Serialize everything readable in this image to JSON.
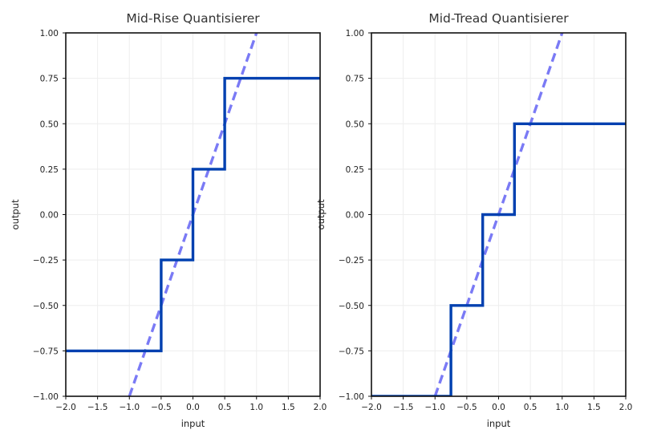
{
  "colors": {
    "quantized": "#0040b0",
    "ideal": "#7a7af5",
    "grid": "#eeeeee"
  },
  "chart_data": [
    {
      "type": "line",
      "title": "Mid-Rise Quantisierer",
      "xlabel": "input",
      "ylabel": "output",
      "xlim": [
        -2.0,
        2.0
      ],
      "ylim": [
        -1.0,
        1.0
      ],
      "xticks": [
        "−2.0",
        "−1.5",
        "−1.0",
        "−0.5",
        "0.0",
        "0.5",
        "1.0",
        "1.5",
        "2.0"
      ],
      "yticks": [
        "−1.00",
        "−0.75",
        "−0.50",
        "−0.25",
        "0.00",
        "0.25",
        "0.50",
        "0.75",
        "1.00"
      ],
      "grid": true,
      "series": [
        {
          "style": "solid-step",
          "x": [
            -2.0,
            -0.5,
            -0.5,
            0.0,
            0.0,
            0.5,
            0.5,
            2.0
          ],
          "y": [
            -0.75,
            -0.75,
            -0.25,
            -0.25,
            0.25,
            0.25,
            0.75,
            0.75
          ]
        },
        {
          "style": "dashed",
          "x": [
            -1.0,
            1.0
          ],
          "y": [
            -1.0,
            1.0
          ]
        }
      ]
    },
    {
      "type": "line",
      "title": "Mid-Tread Quantisierer",
      "xlabel": "input",
      "ylabel": "output",
      "xlim": [
        -2.0,
        2.0
      ],
      "ylim": [
        -1.0,
        1.0
      ],
      "xticks": [
        "−2.0",
        "−1.5",
        "−1.0",
        "−0.5",
        "0.0",
        "0.5",
        "1.0",
        "1.5",
        "2.0"
      ],
      "yticks": [
        "−1.00",
        "−0.75",
        "−0.50",
        "−0.25",
        "0.00",
        "0.25",
        "0.50",
        "0.75",
        "1.00"
      ],
      "grid": true,
      "series": [
        {
          "style": "solid-step",
          "x": [
            -2.0,
            -0.75,
            -0.75,
            -0.25,
            -0.25,
            0.25,
            0.25,
            2.0
          ],
          "y": [
            -1.0,
            -1.0,
            -0.5,
            -0.5,
            0.0,
            0.0,
            0.5,
            0.5
          ]
        },
        {
          "style": "dashed",
          "x": [
            -1.0,
            1.0
          ],
          "y": [
            -1.0,
            1.0
          ]
        }
      ]
    }
  ]
}
